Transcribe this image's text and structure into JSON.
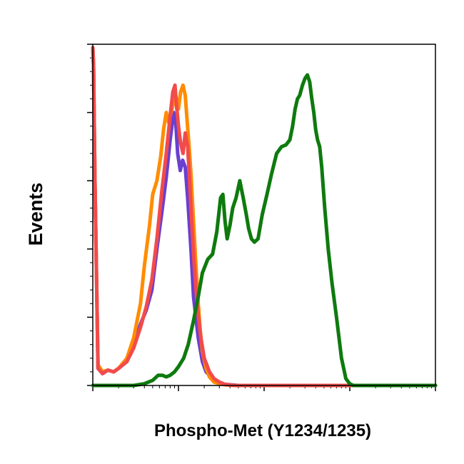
{
  "chart_data": {
    "type": "line",
    "chart_kind": "flow cytometry histogram overlay",
    "title": "",
    "xlabel": "Phospho-Met (Y1234/1235)",
    "ylabel": "Events",
    "x_scale": "log",
    "xlim": [
      1,
      10000
    ],
    "ylim": [
      0,
      100
    ],
    "grid": false,
    "legend": "none",
    "series": [
      {
        "color": "#6a3fd0",
        "x": [
          1.0,
          1.02,
          1.06,
          1.15,
          1.3,
          1.5,
          1.75,
          2.0,
          2.5,
          3.0,
          3.6,
          4.2,
          4.9,
          5.6,
          6.5,
          7.2,
          8.0,
          8.8,
          9.3,
          9.8,
          10.5,
          11.2,
          12.0,
          12.8,
          14.0,
          15.0,
          17.0,
          19.0,
          21.0,
          25.0,
          29.0,
          33.0,
          40.0,
          50.0,
          100.0,
          1000.0,
          10000.0
        ],
        "y": [
          99.0,
          94.0,
          60.0,
          5.0,
          3.5,
          4.5,
          4.0,
          5.0,
          7.0,
          12.0,
          18.0,
          22.0,
          28.0,
          40.0,
          52.0,
          61.0,
          72.0,
          80.0,
          77.0,
          68.0,
          63.0,
          66.0,
          64.0,
          55.0,
          40.0,
          26.0,
          14.0,
          7.0,
          4.0,
          2.0,
          0.8,
          0.4,
          0.2,
          0.0,
          0.0,
          0.0,
          0.0
        ]
      },
      {
        "color": "#ff8c00",
        "x": [
          1.0,
          1.02,
          1.06,
          1.15,
          1.3,
          1.5,
          1.75,
          2.0,
          2.5,
          3.0,
          3.6,
          4.0,
          4.6,
          5.0,
          5.6,
          6.2,
          6.7,
          7.2,
          7.7,
          8.2,
          8.8,
          9.3,
          10.0,
          10.6,
          11.3,
          12.0,
          12.6,
          13.3,
          14.0,
          15.0,
          16.0,
          17.0,
          18.0,
          19.0,
          21.0,
          23.0,
          26.0,
          30.0,
          35.0,
          45.0,
          100.0,
          1000.0,
          10000.0
        ],
        "y": [
          99.0,
          94.0,
          60.0,
          6.0,
          4.0,
          4.5,
          4.0,
          5.0,
          8.0,
          14.0,
          24.0,
          35.0,
          47.0,
          56.0,
          60.0,
          67.0,
          75.0,
          80.0,
          77.0,
          80.0,
          83.0,
          85.0,
          81.0,
          86.0,
          88.0,
          85.0,
          78.0,
          70.0,
          62.0,
          48.0,
          35.0,
          24.0,
          16.0,
          10.0,
          5.0,
          2.5,
          1.0,
          0.5,
          0.2,
          0.0,
          0.0,
          0.0,
          0.0
        ]
      },
      {
        "color": "#f24b4b",
        "x": [
          1.0,
          1.02,
          1.06,
          1.15,
          1.3,
          1.5,
          1.75,
          2.0,
          2.5,
          3.0,
          3.6,
          4.2,
          4.9,
          5.6,
          6.4,
          7.2,
          8.0,
          8.6,
          9.1,
          9.5,
          10.0,
          10.6,
          11.3,
          12.0,
          12.8,
          13.5,
          14.3,
          15.3,
          16.5,
          18.0,
          20.0,
          23.0,
          26.0,
          30.0,
          35.0,
          45.0,
          100.0,
          1000.0,
          10000.0
        ],
        "y": [
          99.0,
          94.0,
          60.0,
          5.0,
          3.5,
          4.5,
          4.0,
          5.0,
          7.0,
          11.0,
          17.0,
          23.0,
          31.0,
          43.0,
          57.0,
          68.0,
          79.0,
          86.0,
          88.0,
          82.0,
          76.0,
          71.0,
          68.0,
          74.0,
          70.0,
          60.0,
          48.0,
          35.0,
          24.0,
          15.0,
          8.0,
          4.0,
          2.0,
          1.0,
          0.3,
          0.0,
          0.0,
          0.0,
          0.0
        ]
      },
      {
        "color": "#0e7a0e",
        "x": [
          1.0,
          2.0,
          3.0,
          4.0,
          5.0,
          5.8,
          6.5,
          7.2,
          8.0,
          9.0,
          10.0,
          11.5,
          13.0,
          15.0,
          17.0,
          19.0,
          22.0,
          25.0,
          28.0,
          31.0,
          33.0,
          35.0,
          37.0,
          40.0,
          43.0,
          47.0,
          52.0,
          57.0,
          62.0,
          66.0,
          71.0,
          77.0,
          85.0,
          95.0,
          108.0,
          122.0,
          140.0,
          160.0,
          180.0,
          200.0,
          215.0,
          230.0,
          245.0,
          260.0,
          280.0,
          300.0,
          320.0,
          340.0,
          360.0,
          380.0,
          400.0,
          420.0,
          445.0,
          470.0,
          510.0,
          560.0,
          620.0,
          700.0,
          800.0,
          900.0,
          1000.0,
          1100.0,
          1300.0,
          2000.0,
          10000.0
        ],
        "y": [
          0.0,
          0.0,
          0.0,
          0.5,
          1.5,
          3.0,
          3.0,
          2.5,
          3.0,
          4.0,
          5.5,
          8.0,
          12.0,
          19.0,
          26.0,
          33.0,
          37.0,
          38.5,
          45.0,
          55.0,
          56.0,
          48.0,
          43.0,
          47.0,
          52.0,
          55.0,
          60.0,
          55.0,
          50.0,
          46.0,
          43.0,
          42.0,
          43.0,
          50.0,
          56.0,
          62.0,
          68.0,
          70.0,
          70.5,
          72.0,
          76.0,
          81.0,
          84.0,
          85.0,
          88.0,
          90.0,
          91.0,
          89.0,
          84.0,
          80.0,
          75.0,
          72.0,
          70.0,
          64.0,
          52.0,
          40.0,
          30.0,
          20.0,
          8.0,
          2.0,
          0.5,
          0.0,
          0.0,
          0.0,
          0.0
        ]
      }
    ]
  }
}
